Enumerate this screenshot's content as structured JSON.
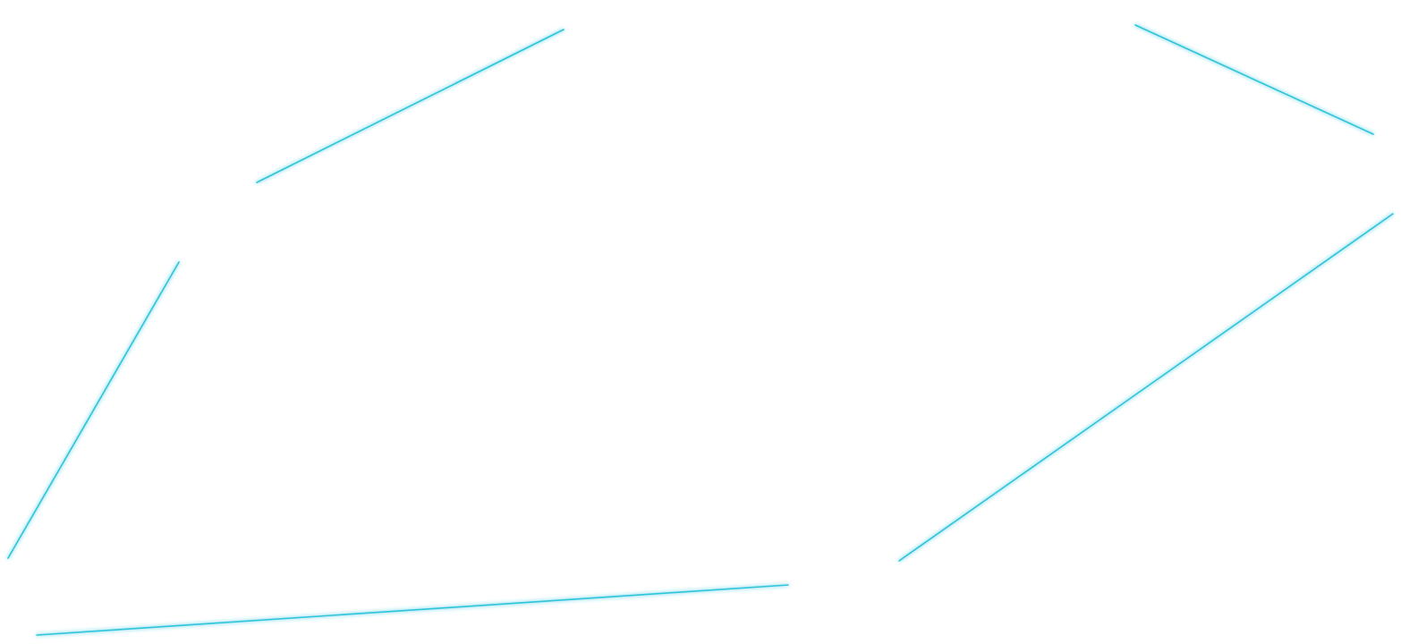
{
  "canvas": {
    "background": "#ffffff",
    "line_color": "#2ec4dc",
    "glow_color": "#bff0f8"
  }
}
